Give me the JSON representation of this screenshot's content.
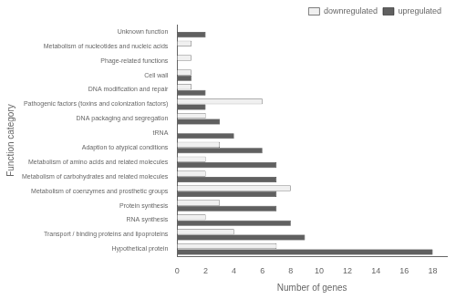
{
  "chart_data": {
    "type": "bar",
    "orientation": "horizontal",
    "categories": [
      "Hypothetical protein",
      "Transport / binding proteins and lipoproteins",
      "RNA synthesis",
      "Protein synthesis",
      "Metabolism of coenzymes and prosthetic groups",
      "Metabolism of carbohydrates and related molecules",
      "Metabolism of amino acids and related molecules",
      "Adaption to atypical conditions",
      "tRNA",
      "DNA packaging and segregation",
      "Pathogenic factors (toxins and colonization factors)",
      "DNA modification and repair",
      "Cell wall",
      "Phage-related functions",
      "Metabolism of nucleotides and nucleic acids",
      "Unknown function"
    ],
    "series": [
      {
        "name": "downregulated",
        "color": "#f0f0f0",
        "values": [
          7,
          4,
          2,
          3,
          8,
          2,
          2,
          3,
          0,
          2,
          6,
          1,
          1,
          1,
          1,
          0
        ]
      },
      {
        "name": "upregulated",
        "color": "#606060",
        "values": [
          18,
          9,
          8,
          7,
          7,
          7,
          7,
          6,
          4,
          3,
          2,
          2,
          1,
          0,
          0,
          2
        ]
      }
    ],
    "xlabel": "Number of genes",
    "ylabel": "Function category",
    "xlim": [
      0,
      19
    ],
    "xticks": [
      0,
      2,
      4,
      6,
      8,
      10,
      12,
      14,
      16,
      18
    ],
    "grid": false,
    "legend": "upper right"
  }
}
